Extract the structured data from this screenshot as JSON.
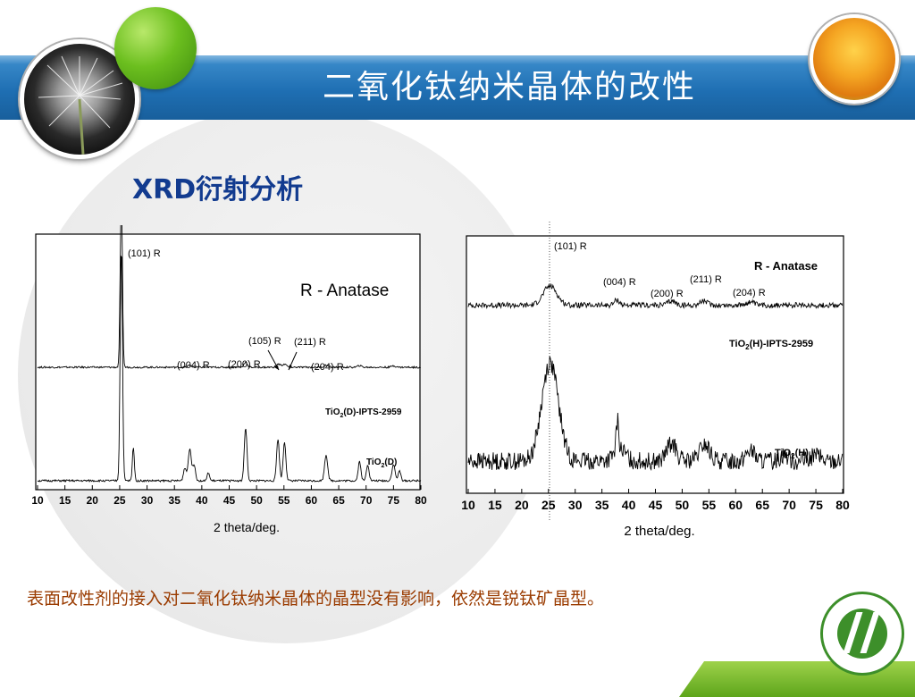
{
  "slide": {
    "title": "二氧化钛纳米晶体的改性",
    "subtitle": "XRD衍射分析",
    "caption": "表面改性剂的接入对二氧化钛纳米晶体的晶型没有影响，依然是锐钛矿晶型。"
  },
  "colors": {
    "title_band": "#1f6fb3",
    "subtitle": "#123b8f",
    "caption": "#9a3b00",
    "accent_green": "#5da51b"
  },
  "chart_data": [
    {
      "type": "line",
      "xlabel": "2 theta/deg.",
      "xticks": [
        10,
        15,
        20,
        25,
        30,
        35,
        40,
        45,
        50,
        55,
        60,
        65,
        70,
        75,
        80
      ],
      "xlim": [
        10,
        80
      ],
      "phase_label": "R - Anatase",
      "series": [
        {
          "name": "TiO2(D)-IPTS-2959",
          "label_main": "TiO",
          "label_sub": "2",
          "label_rest": "(D)-IPTS-2959",
          "baseline": 0.35,
          "noise": 0.008,
          "peaks": [
            [
              25.3,
              1.6,
              0.28
            ],
            [
              37.8,
              0.02,
              0.4
            ],
            [
              48.0,
              0.05,
              0.4
            ],
            [
              54.0,
              0.03,
              0.5
            ],
            [
              55.1,
              0.03,
              0.5
            ],
            [
              62.7,
              0.02,
              0.5
            ],
            [
              68.8,
              0.015,
              0.5
            ],
            [
              75.0,
              0.015,
              0.5
            ]
          ]
        },
        {
          "name": "TiO2(D)",
          "label_main": "TiO",
          "label_sub": "2",
          "label_rest": "(D)",
          "baseline": 0.0,
          "noise": 0.006,
          "peaks": [
            [
              25.3,
              1.45,
              0.3
            ],
            [
              27.5,
              0.21,
              0.25
            ],
            [
              36.9,
              0.08,
              0.35
            ],
            [
              37.8,
              0.2,
              0.4
            ],
            [
              38.6,
              0.1,
              0.35
            ],
            [
              41.2,
              0.05,
              0.3
            ],
            [
              48.0,
              0.33,
              0.35
            ],
            [
              53.9,
              0.26,
              0.35
            ],
            [
              55.1,
              0.24,
              0.35
            ],
            [
              62.7,
              0.16,
              0.4
            ],
            [
              68.8,
              0.12,
              0.35
            ],
            [
              70.3,
              0.1,
              0.35
            ],
            [
              75.0,
              0.1,
              0.4
            ],
            [
              76.1,
              0.06,
              0.35
            ]
          ]
        }
      ],
      "annotations": [
        "(101) R",
        "(004) R",
        "(200) R",
        "(105) R",
        "(211) R",
        "(204) R"
      ]
    },
    {
      "type": "line",
      "xlabel": "2 theta/deg.",
      "xticks": [
        10,
        15,
        20,
        25,
        30,
        35,
        40,
        45,
        50,
        55,
        60,
        65,
        70,
        75,
        80
      ],
      "xlim": [
        10,
        80
      ],
      "phase_label": "R - Anatase",
      "series": [
        {
          "name": "TiO2(H)-IPTS-2959",
          "label_main": "TiO",
          "label_sub": "2",
          "label_rest": "(H)-IPTS-2959",
          "baseline": 0.62,
          "noise": 0.025,
          "peaks": [
            [
              25.3,
              0.18,
              1.8
            ],
            [
              37.8,
              0.05,
              0.7
            ],
            [
              48.0,
              0.04,
              1.0
            ],
            [
              54.0,
              0.04,
              1.0
            ],
            [
              62.7,
              0.03,
              1.0
            ]
          ]
        },
        {
          "name": "TiO2(H)",
          "label_main": "TiO",
          "label_sub": "2",
          "label_rest": "(H)",
          "baseline": 0.05,
          "noise": 0.05,
          "peaks": [
            [
              25.3,
              0.55,
              2.2
            ],
            [
              37.9,
              0.17,
              0.35
            ],
            [
              38.4,
              0.06,
              1.5
            ],
            [
              48.0,
              0.1,
              1.2
            ],
            [
              54.2,
              0.09,
              1.3
            ],
            [
              62.7,
              0.06,
              1.2
            ],
            [
              69.0,
              0.04,
              1.0
            ],
            [
              75.0,
              0.04,
              1.0
            ]
          ]
        }
      ],
      "annotations": [
        "(101) R",
        "(004) R",
        "(211) R",
        "(200) R",
        "(204) R"
      ]
    }
  ]
}
